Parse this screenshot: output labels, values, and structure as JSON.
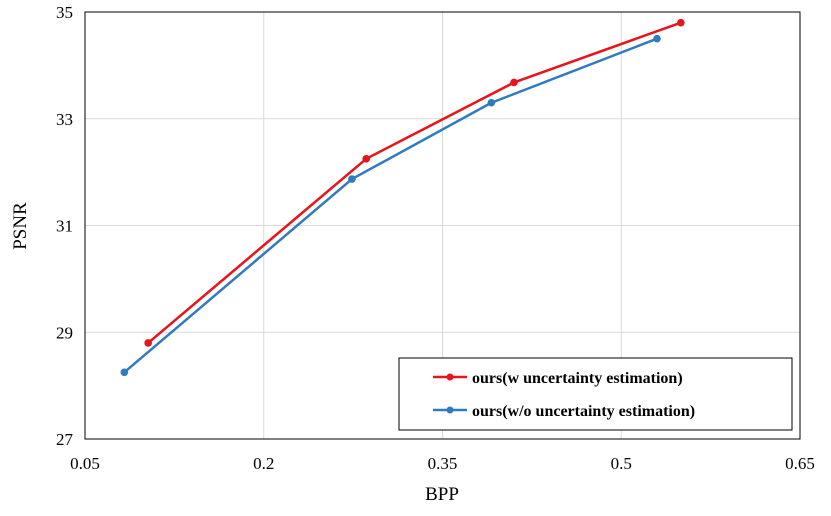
{
  "chart_data": {
    "type": "line",
    "title": "",
    "xlabel": "BPP",
    "ylabel": "PSNR",
    "xlim": [
      0.05,
      0.65
    ],
    "ylim": [
      27,
      35
    ],
    "xticks": [
      "0.05",
      "0.2",
      "0.35",
      "0.5",
      "0.65"
    ],
    "xtick_values": [
      0.05,
      0.2,
      0.35,
      0.5,
      0.65
    ],
    "yticks": [
      "27",
      "29",
      "31",
      "33",
      "35"
    ],
    "ytick_values": [
      27,
      29,
      31,
      33,
      35
    ],
    "grid": true,
    "legend_position": "bottom-right",
    "series": [
      {
        "name": "ours(w uncertainty estimation)",
        "color": "#e8141b",
        "x": [
          0.103,
          0.286,
          0.41,
          0.55
        ],
        "y": [
          28.8,
          32.25,
          33.68,
          34.8
        ]
      },
      {
        "name": "ours(w/o uncertainty estimation)",
        "color": "#2e7bc0",
        "x": [
          0.083,
          0.274,
          0.391,
          0.53
        ],
        "y": [
          28.25,
          31.87,
          33.3,
          34.5
        ]
      }
    ]
  }
}
